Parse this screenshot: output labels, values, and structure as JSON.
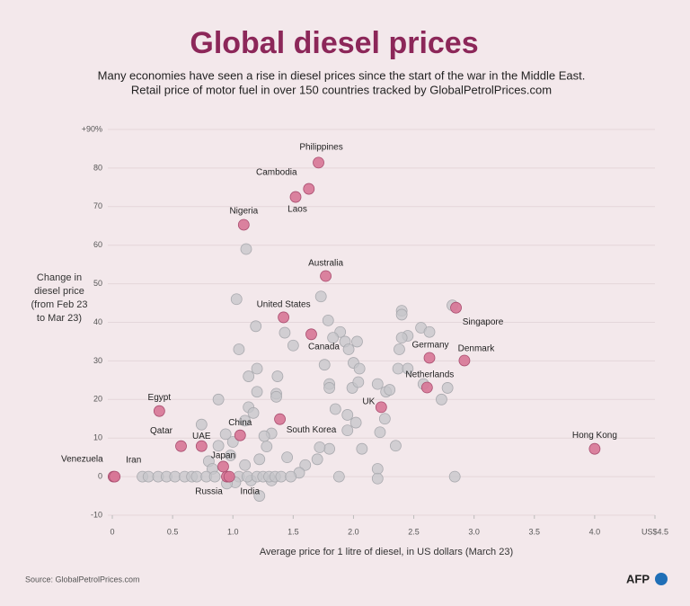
{
  "chart_data": {
    "type": "scatter",
    "title": "Global diesel prices",
    "subtitle": [
      "Many economies have seen a rise in diesel prices since the start of the war in the Middle East.",
      "Retail price of motor fuel in over 150 countries tracked by GlobalPetrolPrices.com"
    ],
    "y_label": [
      "Change in",
      "diesel price",
      "(from Feb 23",
      "to Mar 23)"
    ],
    "x_label": "Average price for 1 litre of diesel, in US dollars (March 23)",
    "source": "Source: GlobalPetrolPrices.com",
    "logo": "AFP",
    "xlim": [
      0,
      4.5
    ],
    "ylim": [
      -10,
      90
    ],
    "xticks": [
      0,
      0.5,
      {
        "value": 1,
        "label": "1.0"
      },
      1.5,
      {
        "value": 2,
        "label": "2.0"
      },
      2.5,
      {
        "value": 3,
        "label": "3.0"
      },
      3.5,
      {
        "value": 4,
        "label": "4.0"
      },
      {
        "value": 4.5,
        "label": "US$4.5"
      }
    ],
    "yticks": [
      -10,
      0,
      10,
      20,
      30,
      40,
      50,
      60,
      70,
      80,
      {
        "value": 90,
        "label": "+90%"
      }
    ],
    "grid": true,
    "series": [
      {
        "color": "#c6c6ca",
        "x": [
          1.11,
          1.03,
          1.73,
          1.05,
          1.19,
          1.79,
          1.89,
          1.93,
          2.03,
          1.96,
          1.5,
          1.43,
          1.83,
          2.4,
          2.4,
          2.56,
          2.63,
          2.82,
          2.45,
          2.4,
          2.38,
          2.0,
          2.05,
          1.76,
          1.8,
          1.8,
          1.2,
          1.13,
          1.37,
          1.36,
          1.36,
          1.2,
          0.88,
          1.13,
          1.17,
          1.1,
          1.99,
          2.04,
          2.2,
          2.27,
          2.3,
          2.37,
          2.45,
          2.58,
          2.73,
          2.78,
          1.85,
          1.95,
          1.95,
          2.02,
          2.22,
          2.26,
          2.35,
          2.07,
          1.8,
          1.7,
          1.6,
          1.72,
          1.32,
          1.26,
          1.28,
          1.22,
          1.0,
          0.94,
          0.74,
          0.8,
          0.88,
          0.83,
          0.98,
          1.1,
          1.15,
          1.22,
          1.32,
          1.45,
          1.55,
          1.88,
          2.2,
          2.2,
          2.84,
          0.25,
          0.3,
          0.38,
          0.45,
          0.52,
          0.6,
          0.66,
          0.7,
          0.78,
          0.85,
          1.05,
          1.12,
          1.2,
          1.25,
          1.3,
          1.35,
          1.4,
          1.48,
          1.02,
          0.95
        ],
        "y": [
          59,
          46,
          46.7,
          33,
          39,
          40.5,
          37.5,
          35,
          35,
          33,
          34,
          37.3,
          36,
          43,
          42,
          38.6,
          37.5,
          44.4,
          36.5,
          36,
          33,
          29.5,
          28,
          29,
          24,
          23,
          28,
          26,
          26,
          21.5,
          20.7,
          22,
          20,
          18,
          16.5,
          14.5,
          23,
          24.5,
          24,
          22,
          22.5,
          28,
          28,
          24,
          20,
          23,
          17.5,
          16,
          12,
          14,
          11.5,
          15,
          8,
          7.2,
          7.2,
          4.5,
          3,
          7.6,
          11.2,
          10.5,
          7.8,
          4.5,
          9,
          11,
          13.5,
          4,
          8,
          2,
          5.5,
          3,
          -1,
          -5,
          -1,
          5,
          1,
          0,
          2,
          -0.5,
          0,
          0,
          0,
          0,
          0,
          0,
          0,
          0,
          0,
          0,
          0,
          0,
          0,
          0,
          0,
          0,
          0,
          0,
          0,
          -1.5,
          -1.8
        ]
      },
      {
        "color": "#d77596",
        "labels": [
          "Venezuela",
          "Iran",
          "Qatar",
          "UAE",
          "Egypt",
          "Japan",
          "Russia",
          "India",
          "China",
          "Nigeria",
          "Cambodia",
          "Laos",
          "Philippines",
          "Australia",
          "United States",
          "Canada",
          "South Korea",
          "UK",
          "Germany",
          "Netherlands",
          "Singapore",
          "Denmark",
          "Hong Kong"
        ],
        "x": [
          0.01,
          0.02,
          0.57,
          0.74,
          0.39,
          0.92,
          0.95,
          0.97,
          1.06,
          1.09,
          1.63,
          1.52,
          1.71,
          1.77,
          1.42,
          1.65,
          1.39,
          2.23,
          2.63,
          2.61,
          2.85,
          2.92,
          4.0
        ],
        "y": [
          0,
          0,
          7.9,
          7.9,
          17,
          2.6,
          0,
          0,
          10.7,
          65.3,
          74.6,
          72.5,
          81.4,
          52,
          41.3,
          36.9,
          14.9,
          18,
          30.8,
          23.1,
          43.8,
          30.1,
          7.2
        ]
      }
    ]
  }
}
